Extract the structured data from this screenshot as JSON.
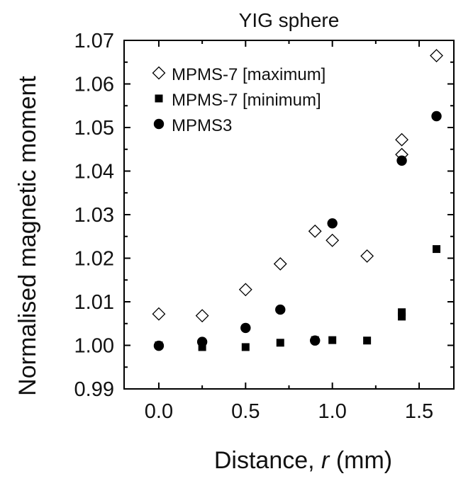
{
  "chart_data": {
    "type": "scatter",
    "title": "YIG sphere",
    "xlabel_prefix": "Distance, ",
    "xlabel_var": "r",
    "xlabel_suffix": " (mm)",
    "ylabel": "Normalised magnetic moment",
    "xlim": [
      -0.2,
      1.7
    ],
    "ylim": [
      0.99,
      1.07
    ],
    "xticks": [
      0.0,
      0.5,
      1.0,
      1.5
    ],
    "xtick_labels": [
      "0.0",
      "0.5",
      "1.0",
      "1.5"
    ],
    "yticks": [
      0.99,
      1.0,
      1.01,
      1.02,
      1.03,
      1.04,
      1.05,
      1.06,
      1.07
    ],
    "ytick_labels": [
      "0.99",
      "1.00",
      "1.01",
      "1.02",
      "1.03",
      "1.04",
      "1.05",
      "1.06",
      "1.07"
    ],
    "legend_position": "top-left",
    "series": [
      {
        "name": "MPMS-7 [maximum]",
        "marker": "diamond-open",
        "color": "#000000",
        "points": [
          {
            "x": 0.0,
            "y": 1.0072
          },
          {
            "x": 0.25,
            "y": 1.0068
          },
          {
            "x": 0.5,
            "y": 1.0128
          },
          {
            "x": 0.7,
            "y": 1.0187
          },
          {
            "x": 0.9,
            "y": 1.0262
          },
          {
            "x": 1.0,
            "y": 1.0241
          },
          {
            "x": 1.2,
            "y": 1.0205
          },
          {
            "x": 1.4,
            "y": 1.0472
          },
          {
            "x": 1.4,
            "y": 1.0438
          },
          {
            "x": 1.6,
            "y": 1.0665
          }
        ]
      },
      {
        "name": "MPMS-7 [minimum]",
        "marker": "square-filled",
        "color": "#000000",
        "points": [
          {
            "x": 0.0,
            "y": 1.0
          },
          {
            "x": 0.25,
            "y": 0.9996
          },
          {
            "x": 0.5,
            "y": 0.9996
          },
          {
            "x": 0.7,
            "y": 1.0006
          },
          {
            "x": 0.9,
            "y": 1.0012
          },
          {
            "x": 1.0,
            "y": 1.0012
          },
          {
            "x": 1.2,
            "y": 1.0011
          },
          {
            "x": 1.4,
            "y": 1.0076
          },
          {
            "x": 1.4,
            "y": 1.0066
          },
          {
            "x": 1.6,
            "y": 1.0221
          }
        ]
      },
      {
        "name": "MPMS3",
        "marker": "circle-filled",
        "color": "#000000",
        "points": [
          {
            "x": 0.0,
            "y": 0.9999
          },
          {
            "x": 0.25,
            "y": 1.0008
          },
          {
            "x": 0.5,
            "y": 1.004
          },
          {
            "x": 0.7,
            "y": 1.0082
          },
          {
            "x": 0.9,
            "y": 1.0011
          },
          {
            "x": 1.0,
            "y": 1.028
          },
          {
            "x": 1.4,
            "y": 1.0424
          },
          {
            "x": 1.6,
            "y": 1.0526
          }
        ]
      }
    ]
  }
}
